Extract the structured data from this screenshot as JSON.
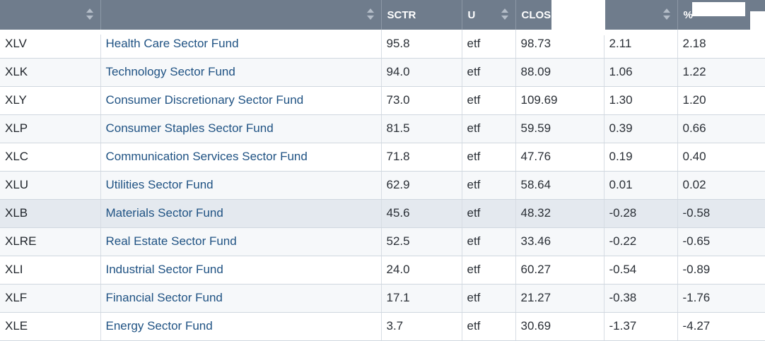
{
  "table": {
    "headers": {
      "symbol": "",
      "name": "",
      "sctr": "SCTR",
      "universe": "U",
      "close": "CLOS",
      "change": "",
      "pct_change": "%"
    },
    "rows": [
      {
        "symbol": "XLV",
        "name": "Health Care Sector Fund",
        "sctr": "95.8",
        "universe": "etf",
        "close": "98.73",
        "change": "2.11",
        "pct_change": "2.18"
      },
      {
        "symbol": "XLK",
        "name": "Technology Sector Fund",
        "sctr": "94.0",
        "universe": "etf",
        "close": "88.09",
        "change": "1.06",
        "pct_change": "1.22"
      },
      {
        "symbol": "XLY",
        "name": "Consumer Discretionary Sector Fund",
        "sctr": "73.0",
        "universe": "etf",
        "close": "109.69",
        "change": "1.30",
        "pct_change": "1.20"
      },
      {
        "symbol": "XLP",
        "name": "Consumer Staples Sector Fund",
        "sctr": "81.5",
        "universe": "etf",
        "close": "59.59",
        "change": "0.39",
        "pct_change": "0.66"
      },
      {
        "symbol": "XLC",
        "name": "Communication Services Sector Fund",
        "sctr": "71.8",
        "universe": "etf",
        "close": "47.76",
        "change": "0.19",
        "pct_change": "0.40"
      },
      {
        "symbol": "XLU",
        "name": "Utilities Sector Fund",
        "sctr": "62.9",
        "universe": "etf",
        "close": "58.64",
        "change": "0.01",
        "pct_change": "0.02"
      },
      {
        "symbol": "XLB",
        "name": "Materials Sector Fund",
        "sctr": "45.6",
        "universe": "etf",
        "close": "48.32",
        "change": "-0.28",
        "pct_change": "-0.58"
      },
      {
        "symbol": "XLRE",
        "name": "Real Estate Sector Fund",
        "sctr": "52.5",
        "universe": "etf",
        "close": "33.46",
        "change": "-0.22",
        "pct_change": "-0.65"
      },
      {
        "symbol": "XLI",
        "name": "Industrial Sector Fund",
        "sctr": "24.0",
        "universe": "etf",
        "close": "60.27",
        "change": "-0.54",
        "pct_change": "-0.89"
      },
      {
        "symbol": "XLF",
        "name": "Financial Sector Fund",
        "sctr": "17.1",
        "universe": "etf",
        "close": "21.27",
        "change": "-0.38",
        "pct_change": "-1.76"
      },
      {
        "symbol": "XLE",
        "name": "Energy Sector Fund",
        "sctr": "3.7",
        "universe": "etf",
        "close": "30.69",
        "change": "-1.37",
        "pct_change": "-4.27"
      }
    ],
    "highlighted_row": "XLB"
  },
  "icons": {
    "sort": "sort-arrows-icon"
  },
  "colors": {
    "header_bg": "#6f7c8c",
    "link": "#1f5283",
    "highlight_row": "#e4e9ef"
  }
}
